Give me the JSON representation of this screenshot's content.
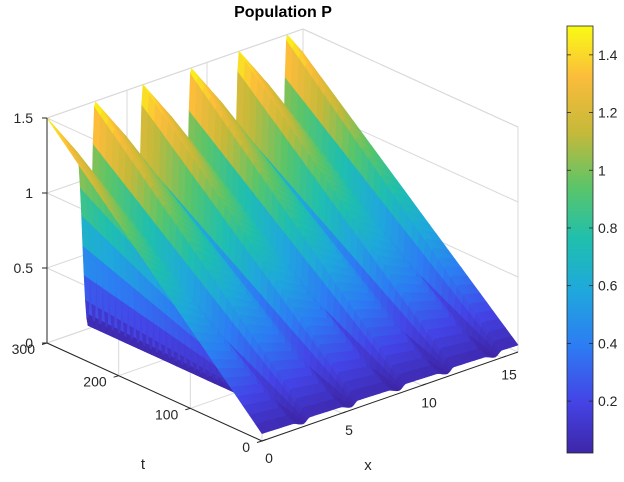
{
  "chart_data": {
    "type": "surface",
    "title": "Population P",
    "xlabel": "x",
    "ylabel": "t",
    "zlabel": "",
    "xlim": [
      0,
      16
    ],
    "ylim": [
      0,
      300
    ],
    "zlim": [
      0,
      1.5
    ],
    "x_ticks": [
      "0",
      "5",
      "10",
      "15"
    ],
    "y_ticks": [
      "0",
      "100",
      "200",
      "300"
    ],
    "z_ticks": [
      "0",
      "0.5",
      "1",
      "1.5"
    ],
    "colorbar": {
      "range": [
        0.02,
        1.5
      ],
      "ticks": [
        "0.2",
        "0.4",
        "0.6",
        "0.8",
        "1",
        "1.2",
        "1.4"
      ],
      "tick_values": [
        0.2,
        0.4,
        0.6,
        0.8,
        1.0,
        1.2,
        1.4
      ],
      "colormap": "parula"
    },
    "surface": {
      "wave_count": 5,
      "wave_period_x": 3.0,
      "peak_value": 1.5,
      "trough_value": 0.02,
      "x_range": [
        0,
        16
      ]
    },
    "grid": true,
    "colors": {
      "low": "#3e26a8",
      "mid": "#1fb5b6",
      "high": "#f9fb14",
      "grid": "#d9d9d9",
      "axis": "#262626"
    }
  }
}
